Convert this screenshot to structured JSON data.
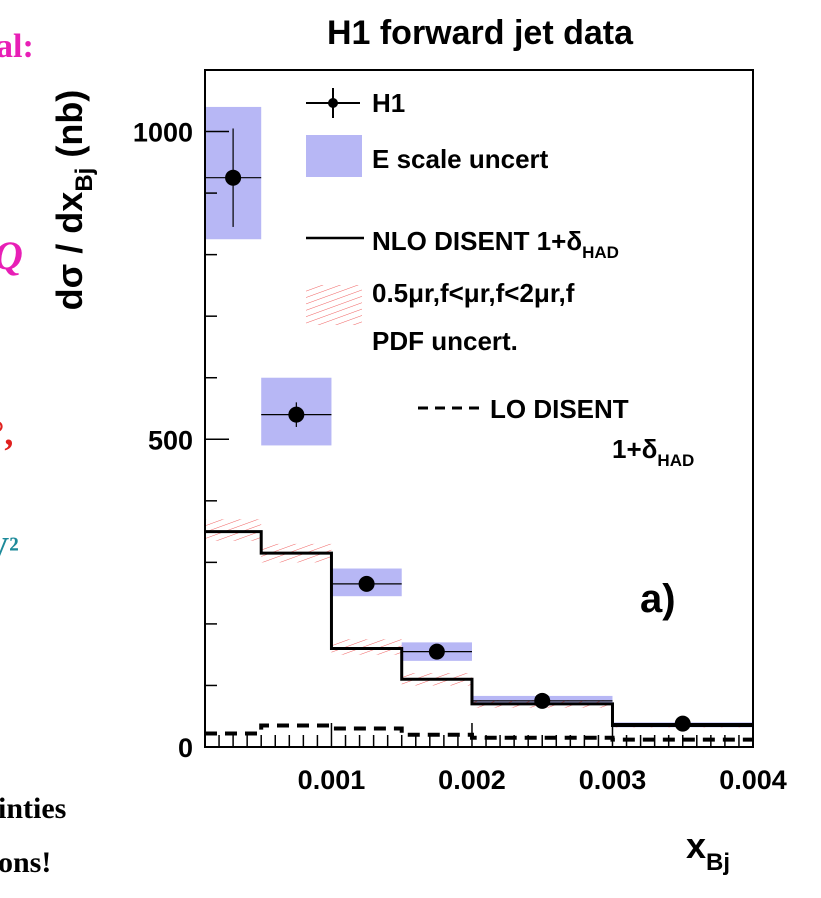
{
  "slide_fragments": {
    "line1": "al:",
    "line2": "Q",
    "line3": "°,",
    "line4": "V²",
    "line5": "inties",
    "line6": "ons!"
  },
  "chart_data": {
    "type": "histogram",
    "title": "H1 forward jet data",
    "panel_label": "a)",
    "xlabel": "x",
    "xlabel_sub": "Bj",
    "ylabel_main": "dσ / dx",
    "ylabel_sub": "Bj",
    "ylabel_unit": "(nb)",
    "xlim": [
      0.0001,
      0.004
    ],
    "ylim": [
      0,
      1100
    ],
    "x_ticks": [
      {
        "value": 0.001,
        "label": "0.001"
      },
      {
        "value": 0.002,
        "label": "0.002"
      },
      {
        "value": 0.003,
        "label": "0.003"
      },
      {
        "value": 0.004,
        "label": "0.004"
      }
    ],
    "y_ticks": [
      {
        "value": 0,
        "label": "0"
      },
      {
        "value": 500,
        "label": "500"
      },
      {
        "value": 1000,
        "label": "1000"
      }
    ],
    "bin_edges": [
      0.0001,
      0.0005,
      0.001,
      0.0015,
      0.002,
      0.003,
      0.004
    ],
    "h1": {
      "x": [
        0.0003,
        0.00075,
        0.00125,
        0.00175,
        0.0025,
        0.0035
      ],
      "y": [
        925,
        540,
        265,
        155,
        75,
        38
      ],
      "stat_err": [
        80,
        20,
        5,
        4,
        2,
        2
      ]
    },
    "e_scale_band": {
      "low": [
        825,
        490,
        245,
        140,
        68,
        32
      ],
      "high": [
        1040,
        600,
        290,
        170,
        83,
        40
      ]
    },
    "nlo_disent": [
      350,
      315,
      160,
      110,
      70,
      35
    ],
    "nlo_band": {
      "low": [
        335,
        300,
        150,
        100,
        64,
        32
      ],
      "high": [
        370,
        330,
        175,
        120,
        76,
        38
      ]
    },
    "lo_disent": [
      22,
      35,
      30,
      20,
      15,
      12
    ],
    "legend": [
      {
        "key": "h1",
        "text": "H1"
      },
      {
        "key": "escale",
        "text": "E scale uncert"
      },
      {
        "key": "nlo",
        "text": "NLO DISENT 1+δ",
        "sub": "HAD"
      },
      {
        "key": "scale",
        "text": "0.5μr,f<μr,f<2μr,f"
      },
      {
        "key": "pdf",
        "text": "PDF uncert."
      },
      {
        "key": "lo_line1",
        "text": "LO DISENT"
      },
      {
        "key": "lo_line2",
        "text": "1+δ",
        "sub": "HAD"
      }
    ],
    "colors": {
      "escale_fill": "#b7b7f5",
      "hatch": "#f06060",
      "line": "#000000",
      "frame": "#000000"
    }
  }
}
